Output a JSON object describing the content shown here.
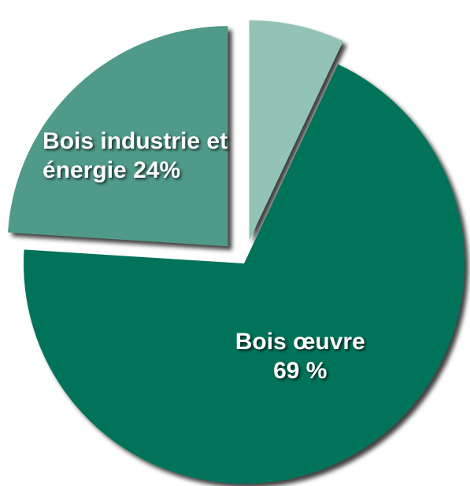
{
  "chart_data": {
    "type": "pie",
    "categories": [
      "Bois œuvre",
      "Bois industrie et énergie",
      null
    ],
    "values": [
      69,
      24,
      7
    ],
    "value_labels": [
      "69 %",
      "24%",
      null
    ],
    "colors": [
      "#00735a",
      "#4f9a88",
      "#93c3b7"
    ]
  }
}
